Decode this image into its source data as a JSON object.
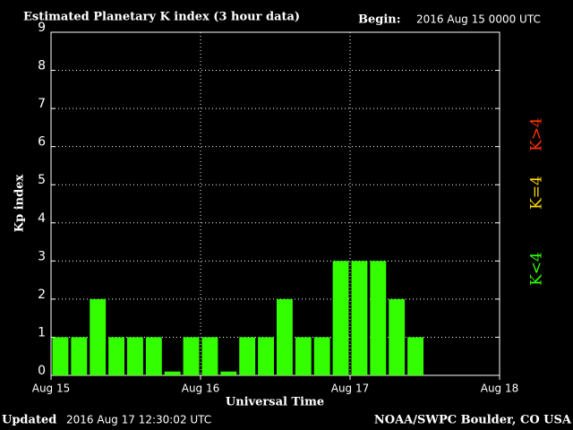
{
  "chart_data": {
    "type": "bar",
    "title": "Estimated Planetary K index (3 hour data)",
    "begin_label": "Begin:",
    "begin": "2016 Aug 15 0000 UTC",
    "updated_label": "Updated",
    "updated": "2016 Aug 17 12:30:02 UTC",
    "credit": "NOAA/SWPC Boulder, CO USA",
    "x_label": "Universal Time",
    "y_label": "Kp index",
    "x": [
      0,
      1,
      2,
      3,
      4,
      5,
      6,
      7,
      8,
      9,
      10,
      11,
      12,
      13,
      14,
      15,
      16,
      17,
      18,
      19
    ],
    "values": [
      1,
      1,
      2,
      1,
      1,
      1,
      0.1,
      1,
      1,
      0.1,
      1,
      1,
      2,
      1,
      1,
      3,
      3,
      3,
      2,
      1
    ],
    "color": "#33ff00",
    "xlim": [
      0,
      24
    ],
    "xticks": [
      {
        "value": 0,
        "label": "Aug 15"
      },
      {
        "value": 8,
        "label": "Aug 16"
      },
      {
        "value": 16,
        "label": "Aug 17"
      },
      {
        "value": 24,
        "label": "Aug 18"
      }
    ],
    "ylim": [
      0,
      9
    ],
    "yticks": [
      0,
      1,
      2,
      3,
      4,
      5,
      6,
      7,
      8,
      9
    ],
    "grid": true,
    "legend": [
      {
        "label": "K<4",
        "color": "#33ff00"
      },
      {
        "label": "K=4",
        "color": "#ffd700"
      },
      {
        "label": "K>4",
        "color": "#ff3300"
      }
    ]
  }
}
